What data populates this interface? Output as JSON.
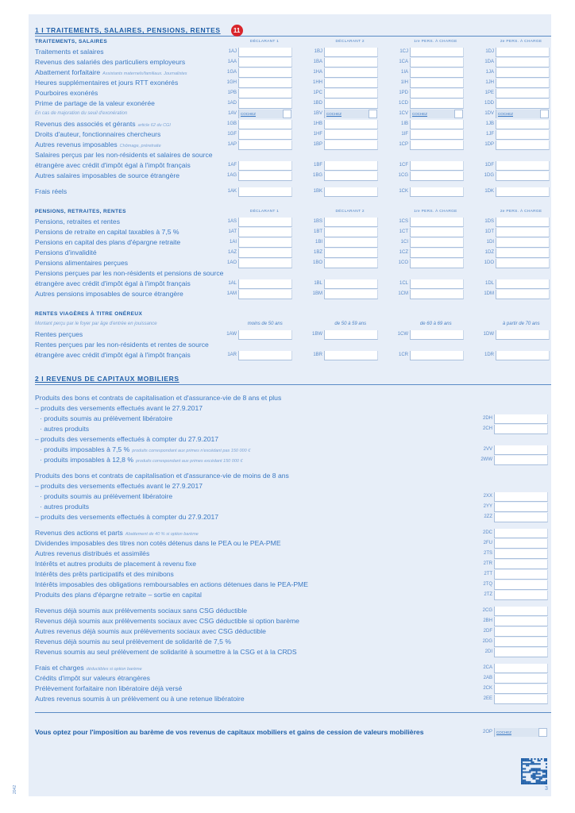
{
  "section1": {
    "title": "1 I TRAITEMENTS, SALAIRES, PENSIONS, RENTES",
    "badge": "11",
    "blocks": [
      {
        "title": "TRAITEMENTS, SALAIRES",
        "col_headers": [
          "DÉCLARANT 1",
          "DÉCLARANT 2",
          "1re PERS. À CHARGE",
          "2e PERS. À CHARGE"
        ],
        "groups": [
          [
            {
              "label": "Traitements et salaires",
              "codes": [
                "1AJ",
                "1BJ",
                "1CJ",
                "1DJ"
              ]
            },
            {
              "label": "Revenus des salariés des particuliers employeurs",
              "codes": [
                "1AA",
                "1BA",
                "1CA",
                "1DA"
              ]
            },
            {
              "label": "Abattement forfaitaire",
              "note": "Assistants maternels/familiaux. Journalistes",
              "codes": [
                "1GA",
                "1HA",
                "1IA",
                "1JA"
              ]
            },
            {
              "label": "Heures supplémentaires et jours RTT exonérés",
              "codes": [
                "1GH",
                "1HH",
                "1IH",
                "1JH"
              ]
            },
            {
              "label": "Pourboires exonérés",
              "codes": [
                "1PB",
                "1PC",
                "1PD",
                "1PE"
              ]
            },
            {
              "label": "Prime de partage de la valeur exonérée",
              "codes": [
                "1AD",
                "1BD",
                "1CD",
                "1DD"
              ]
            },
            {
              "label": "En cas de majoration du seuil d'exonération",
              "italic": true,
              "codes": [
                "1AV",
                "1BV",
                "1CV",
                "1DV"
              ],
              "cochez": "COCHEZ"
            },
            {
              "label": "Revenus des associés et gérants",
              "note": "article 62 du CGI",
              "codes": [
                "1GB",
                "1HB",
                "1IB",
                "1JB"
              ]
            },
            {
              "label": "Droits d'auteur, fonctionnaires chercheurs",
              "codes": [
                "1GF",
                "1HF",
                "1IF",
                "1JF"
              ]
            },
            {
              "label": "Autres revenus imposables",
              "note": "Chômage, préretraite",
              "codes": [
                "1AP",
                "1BP",
                "1CP",
                "1DP"
              ]
            },
            {
              "label": "Salaires perçus par les non-résidents et salaires de source"
            },
            {
              "label": "étrangère avec crédit d'impôt égal à l'impôt français",
              "codes": [
                "1AF",
                "1BF",
                "1CF",
                "1DF"
              ]
            },
            {
              "label": "Autres salaires imposables de source étrangère",
              "codes": [
                "1AG",
                "1BG",
                "1CG",
                "1DG"
              ]
            }
          ],
          [
            {
              "label": "Frais réels",
              "codes": [
                "1AK",
                "1BK",
                "1CK",
                "1DK"
              ]
            }
          ]
        ]
      },
      {
        "title": "PENSIONS, RETRAITES, RENTES",
        "col_headers": [
          "DÉCLARANT 1",
          "DÉCLARANT 2",
          "1re PERS. À CHARGE",
          "2e PERS. À CHARGE"
        ],
        "groups": [
          [
            {
              "label": "Pensions, retraites et rentes",
              "codes": [
                "1AS",
                "1BS",
                "1CS",
                "1DS"
              ]
            },
            {
              "label": "Pensions de retraite en capital taxables à 7,5 %",
              "codes": [
                "1AT",
                "1BT",
                "1CT",
                "1DT"
              ]
            },
            {
              "label": "Pensions en capital des plans d'épargne retraite",
              "codes": [
                "1AI",
                "1BI",
                "1CI",
                "1DI"
              ]
            },
            {
              "label": "Pensions d'invalidité",
              "codes": [
                "1AZ",
                "1BZ",
                "1CZ",
                "1DZ"
              ]
            },
            {
              "label": "Pensions alimentaires perçues",
              "codes": [
                "1AO",
                "1BO",
                "1CO",
                "1DO"
              ]
            },
            {
              "label": "Pensions perçues par les non-résidents et pensions de source"
            },
            {
              "label": "étrangère avec crédit d'impôt égal à l'impôt français",
              "codes": [
                "1AL",
                "1BL",
                "1CL",
                "1DL"
              ]
            },
            {
              "label": "Autres pensions imposables de source étrangère",
              "codes": [
                "1AM",
                "1BM",
                "1CM",
                "1DM"
              ]
            }
          ]
        ]
      },
      {
        "title": "RENTES VIAGÈRES À TITRE ONÉREUX",
        "subtitle": "Montant perçu par le foyer par âge d'entrée en jouissance",
        "col_headers": [
          "moins de 50 ans",
          "de 50 à 59 ans",
          "de 60 à 69 ans",
          "à partir de 70 ans"
        ],
        "groups": [
          [
            {
              "label": "Rentes perçues",
              "codes": [
                "1AW",
                "1BW",
                "1CW",
                "1DW"
              ]
            },
            {
              "label": "Rentes perçues par les non-résidents et rentes de source"
            },
            {
              "label": "étrangère avec crédit d'impôt égal à l'impôt français",
              "codes": [
                "1AR",
                "1BR",
                "1CR",
                "1DR"
              ]
            }
          ]
        ]
      }
    ]
  },
  "section2": {
    "title": "2 I REVENUS DE CAPITAUX MOBILIERS",
    "groups": [
      [
        {
          "label": "Produits des bons et contrats de capitalisation et d'assurance-vie de 8 ans et plus"
        },
        {
          "label": "– produits des versements effectués avant le 27.9.2017"
        },
        {
          "label": "· produits soumis au prélèvement libératoire",
          "indent": 1,
          "code": "2DH"
        },
        {
          "label": "· autres produits",
          "indent": 1,
          "code": "2CH"
        },
        {
          "label": "– produits des versements effectués à compter du 27.9.2017"
        },
        {
          "label": "· produits imposables à 7,5 %",
          "indent": 1,
          "note": "produits correspondant aux primes n'excédant pas 150 000 €",
          "code": "2VV"
        },
        {
          "label": "· produits imposables à 12,8 %",
          "indent": 1,
          "note": "produits correspondant aux primes excédant 150 000 €",
          "code": "2WW"
        }
      ],
      [
        {
          "label": "Produits des bons et contrats de capitalisation et d'assurance-vie de moins de 8 ans"
        },
        {
          "label": "– produits des versements effectués avant le 27.9.2017"
        },
        {
          "label": "· produits soumis au prélèvement libératoire",
          "indent": 1,
          "code": "2XX"
        },
        {
          "label": "· autres produits",
          "indent": 1,
          "code": "2YY"
        },
        {
          "label": "– produits des versements effectués à compter du 27.9.2017",
          "code": "2ZZ"
        }
      ],
      [
        {
          "label": "Revenus des actions et parts",
          "note": "Abattement de 40 % si option barème",
          "code": "2DC"
        },
        {
          "label": "Dividendes imposables des titres non cotés détenus dans le PEA ou le PEA-PME",
          "code": "2FU"
        },
        {
          "label": "Autres revenus distribués et assimilés",
          "code": "2TS"
        },
        {
          "label": "Intérêts et autres produits de placement à revenu fixe",
          "code": "2TR"
        },
        {
          "label": "Intérêts des prêts participatifs et des minibons",
          "code": "2TT"
        },
        {
          "label": "Intérêts imposables des obligations remboursables en actions détenues dans le PEA-PME",
          "code": "2TQ"
        },
        {
          "label": "Produits des plans d'épargne retraite – sortie en capital",
          "code": "2TZ"
        }
      ],
      [
        {
          "label": "Revenus déjà soumis aux prélèvements sociaux sans CSG déductible",
          "code": "2CG"
        },
        {
          "label": "Revenus déjà soumis aux prélèvements sociaux avec CSG déductible si option barème",
          "code": "2BH"
        },
        {
          "label": "Autres revenus déjà soumis aux prélèvements sociaux avec CSG déductible",
          "code": "2DF"
        },
        {
          "label": "Revenus déjà soumis au seul prélèvement de solidarité de 7,5 %",
          "code": "2DG"
        },
        {
          "label": "Revenus soumis au seul prélèvement de solidarité à soumettre à la CSG et à la CRDS",
          "code": "2DI"
        }
      ],
      [
        {
          "label": "Frais et charges",
          "note": "déductibles si option barème",
          "code": "2CA"
        },
        {
          "label": "Crédits d'impôt sur valeurs étrangères",
          "code": "2AB"
        },
        {
          "label": "Prélèvement forfaitaire non libératoire déjà versé",
          "code": "2CK"
        },
        {
          "label": "Autres revenus soumis à un prélèvement ou à une retenue libératoire",
          "code": "2EE"
        }
      ]
    ],
    "option": {
      "label": "Vous optez pour l'imposition au barème de vos revenus de capitaux mobiliers et gains de cession de valeurs mobilières",
      "code": "2OP",
      "cochez": "COCHEZ"
    }
  },
  "footer": {
    "side_text": "2042",
    "page_number": "3"
  },
  "colors": {
    "text": "#3b79c3",
    "heading": "#1f5fa8",
    "panel": "#e7eef8",
    "badge": "#d9252b"
  }
}
